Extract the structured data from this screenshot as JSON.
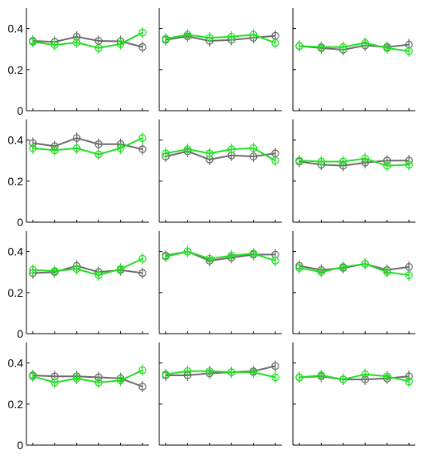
{
  "colors": {
    "series_a": "#6b6b6b",
    "series_b": "#1fe01f",
    "axis": "#000000"
  },
  "chart_data": {
    "type": "line",
    "layout": "4x3 small multiples",
    "ylim": [
      0,
      0.5
    ],
    "y_ticks": [
      0,
      0.2,
      0.4
    ],
    "y_tick_labels": [
      "0",
      "0.2",
      "0.4"
    ],
    "x": [
      1,
      2,
      3,
      4,
      5,
      6
    ],
    "markers": "circle with vertical error bar",
    "panels": [
      {
        "row": 1,
        "col": 1,
        "series": [
          {
            "color": "gray",
            "values": [
              0.34,
              0.335,
              0.36,
              0.34,
              0.338,
              0.31
            ]
          },
          {
            "color": "green",
            "values": [
              0.335,
              0.32,
              0.332,
              0.305,
              0.325,
              0.38
            ]
          }
        ]
      },
      {
        "row": 1,
        "col": 2,
        "series": [
          {
            "color": "gray",
            "values": [
              0.345,
              0.362,
              0.34,
              0.345,
              0.355,
              0.365
            ]
          },
          {
            "color": "green",
            "values": [
              0.35,
              0.37,
              0.355,
              0.36,
              0.37,
              0.33
            ]
          }
        ]
      },
      {
        "row": 1,
        "col": 3,
        "series": [
          {
            "color": "gray",
            "values": [
              0.315,
              0.305,
              0.297,
              0.318,
              0.31,
              0.322
            ]
          },
          {
            "color": "green",
            "values": [
              0.315,
              0.31,
              0.31,
              0.33,
              0.305,
              0.29
            ]
          }
        ]
      },
      {
        "row": 2,
        "col": 1,
        "series": [
          {
            "color": "gray",
            "values": [
              0.385,
              0.37,
              0.41,
              0.38,
              0.38,
              0.355
            ]
          },
          {
            "color": "green",
            "values": [
              0.36,
              0.35,
              0.36,
              0.33,
              0.36,
              0.41
            ]
          }
        ]
      },
      {
        "row": 2,
        "col": 2,
        "series": [
          {
            "color": "gray",
            "values": [
              0.32,
              0.345,
              0.305,
              0.325,
              0.32,
              0.335
            ]
          },
          {
            "color": "green",
            "values": [
              0.335,
              0.355,
              0.335,
              0.355,
              0.36,
              0.3
            ]
          }
        ]
      },
      {
        "row": 2,
        "col": 3,
        "series": [
          {
            "color": "gray",
            "values": [
              0.295,
              0.28,
              0.275,
              0.29,
              0.3,
              0.3
            ]
          },
          {
            "color": "green",
            "values": [
              0.3,
              0.295,
              0.295,
              0.31,
              0.275,
              0.28
            ]
          }
        ]
      },
      {
        "row": 3,
        "col": 1,
        "series": [
          {
            "color": "gray",
            "values": [
              0.295,
              0.3,
              0.33,
              0.3,
              0.31,
              0.295
            ]
          },
          {
            "color": "green",
            "values": [
              0.31,
              0.305,
              0.315,
              0.285,
              0.315,
              0.365
            ]
          }
        ]
      },
      {
        "row": 3,
        "col": 2,
        "series": [
          {
            "color": "gray",
            "values": [
              0.38,
              0.4,
              0.355,
              0.37,
              0.385,
              0.385
            ]
          },
          {
            "color": "green",
            "values": [
              0.375,
              0.4,
              0.365,
              0.38,
              0.39,
              0.355
            ]
          }
        ]
      },
      {
        "row": 3,
        "col": 3,
        "series": [
          {
            "color": "gray",
            "values": [
              0.33,
              0.31,
              0.32,
              0.34,
              0.31,
              0.325
            ]
          },
          {
            "color": "green",
            "values": [
              0.32,
              0.3,
              0.325,
              0.34,
              0.3,
              0.285
            ]
          }
        ]
      },
      {
        "row": 4,
        "col": 1,
        "series": [
          {
            "color": "gray",
            "values": [
              0.34,
              0.335,
              0.335,
              0.33,
              0.325,
              0.285
            ]
          },
          {
            "color": "green",
            "values": [
              0.335,
              0.305,
              0.325,
              0.305,
              0.315,
              0.365
            ]
          }
        ]
      },
      {
        "row": 4,
        "col": 2,
        "series": [
          {
            "color": "gray",
            "values": [
              0.34,
              0.34,
              0.35,
              0.355,
              0.36,
              0.385
            ]
          },
          {
            "color": "green",
            "values": [
              0.345,
              0.36,
              0.36,
              0.355,
              0.355,
              0.33
            ]
          }
        ]
      },
      {
        "row": 4,
        "col": 3,
        "series": [
          {
            "color": "gray",
            "values": [
              0.33,
              0.335,
              0.32,
              0.32,
              0.325,
              0.335
            ]
          },
          {
            "color": "green",
            "values": [
              0.33,
              0.34,
              0.32,
              0.345,
              0.335,
              0.31
            ]
          }
        ]
      }
    ]
  }
}
